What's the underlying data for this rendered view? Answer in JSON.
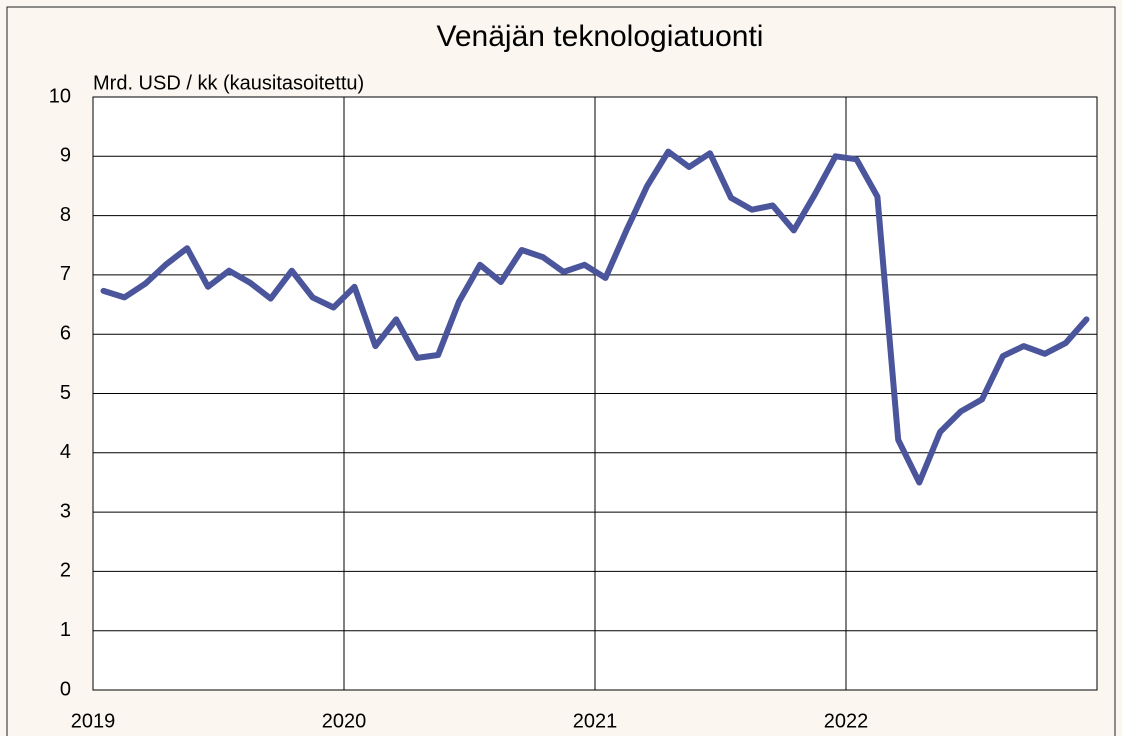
{
  "chart_data": {
    "type": "line",
    "title": "Venäjän teknologiatuonti",
    "y_label": "Mrd. USD / kk (kausitasoitettu)",
    "x": [
      2019.042,
      2019.125,
      2019.208,
      2019.292,
      2019.375,
      2019.458,
      2019.542,
      2019.625,
      2019.708,
      2019.792,
      2019.875,
      2019.958,
      2020.042,
      2020.125,
      2020.208,
      2020.292,
      2020.375,
      2020.458,
      2020.542,
      2020.625,
      2020.708,
      2020.792,
      2020.875,
      2020.958,
      2021.042,
      2021.125,
      2021.208,
      2021.292,
      2021.375,
      2021.458,
      2021.542,
      2021.625,
      2021.708,
      2021.792,
      2021.875,
      2021.958,
      2022.042,
      2022.125,
      2022.208,
      2022.292,
      2022.375,
      2022.458,
      2022.542,
      2022.625,
      2022.708,
      2022.792,
      2022.875,
      2022.958
    ],
    "series": [
      {
        "name": "Teknologiatuonti",
        "color": "#4a559c",
        "values": [
          6.73,
          6.62,
          6.85,
          7.18,
          7.45,
          6.8,
          7.07,
          6.87,
          6.6,
          7.07,
          6.62,
          6.45,
          6.8,
          5.8,
          6.25,
          5.6,
          5.65,
          6.55,
          7.17,
          6.88,
          7.42,
          7.3,
          7.05,
          7.17,
          6.95,
          7.75,
          8.5,
          9.08,
          8.82,
          9.05,
          8.3,
          8.1,
          8.17,
          7.75,
          8.35,
          9.0,
          8.95,
          8.32,
          4.22,
          3.5,
          4.35,
          4.7,
          4.9,
          5.63,
          5.8,
          5.67,
          5.85,
          6.25
        ]
      }
    ],
    "xlim": [
      2019,
      2023
    ],
    "xticks": [
      2019,
      2020,
      2021,
      2022
    ],
    "ylim": [
      0,
      10
    ],
    "yticks": [
      0,
      1,
      2,
      3,
      4,
      5,
      6,
      7,
      8,
      9,
      10
    ],
    "grid": true
  }
}
